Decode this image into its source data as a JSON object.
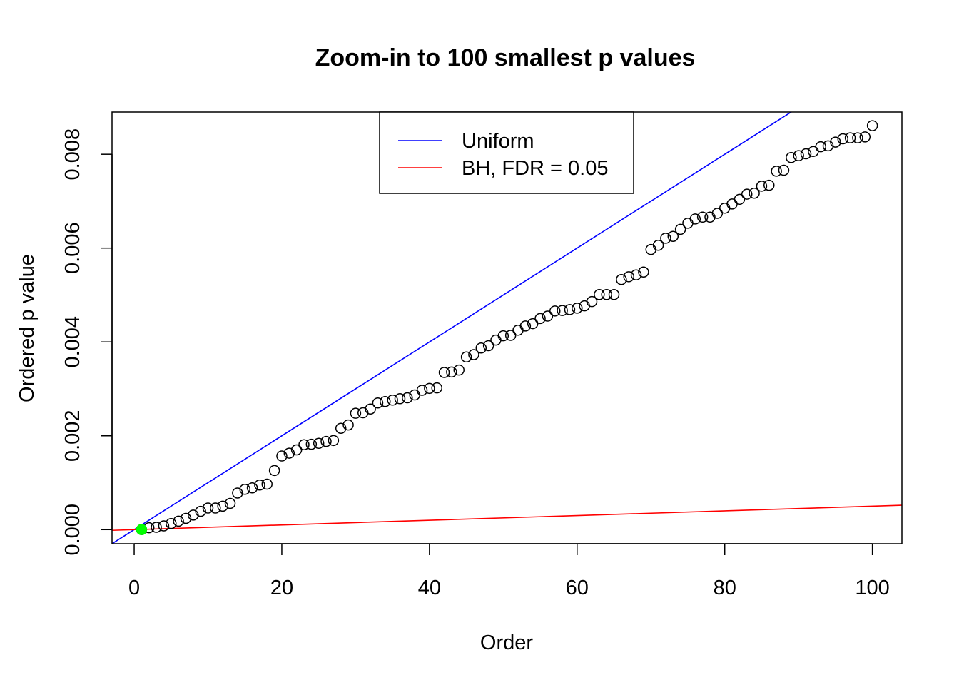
{
  "chart_data": {
    "type": "scatter",
    "title": "Zoom-in to 100 smallest p values",
    "xlabel": "Order",
    "ylabel": "Ordered p value",
    "xlim": [
      -3,
      104
    ],
    "ylim": [
      -0.0003,
      0.0089
    ],
    "xticks": [
      0,
      20,
      40,
      60,
      80,
      100
    ],
    "xtick_labels": [
      "0",
      "20",
      "40",
      "60",
      "80",
      "100"
    ],
    "yticks": [
      0,
      0.002,
      0.004,
      0.006,
      0.008
    ],
    "ytick_labels": [
      "0.000",
      "0.002",
      "0.004",
      "0.006",
      "0.008"
    ],
    "grid": false,
    "legend_position": "top-center",
    "legend": [
      {
        "label": "Uniform",
        "color": "#0000ff"
      },
      {
        "label": "BH, FDR = 0.05",
        "color": "#ff0000"
      }
    ],
    "lines": [
      {
        "name": "Uniform",
        "color": "#0000ff",
        "slope": 0.0001,
        "intercept": 0
      },
      {
        "name": "BH, FDR = 0.05",
        "color": "#ff0000",
        "slope": 5e-06,
        "intercept": 0
      }
    ],
    "highlight": {
      "x": 1,
      "y": 1.5e-06,
      "color": "#00ff00"
    },
    "series": [
      {
        "marker": "open-circle",
        "color": "#000000",
        "x": [
          1,
          2,
          3,
          4,
          5,
          6,
          7,
          8,
          9,
          10,
          11,
          12,
          13,
          14,
          15,
          16,
          17,
          18,
          19,
          20,
          21,
          22,
          23,
          24,
          25,
          26,
          27,
          28,
          29,
          30,
          31,
          32,
          33,
          34,
          35,
          36,
          37,
          38,
          39,
          40,
          41,
          42,
          43,
          44,
          45,
          46,
          47,
          48,
          49,
          50,
          51,
          52,
          53,
          54,
          55,
          56,
          57,
          58,
          59,
          60,
          61,
          62,
          63,
          64,
          65,
          66,
          67,
          68,
          69,
          70,
          71,
          72,
          73,
          74,
          75,
          76,
          77,
          78,
          79,
          80,
          81,
          82,
          83,
          84,
          85,
          86,
          87,
          88,
          89,
          90,
          91,
          92,
          93,
          94,
          95,
          96,
          97,
          98,
          99,
          100
        ],
        "y": [
          1.5e-06,
          4e-05,
          5e-05,
          8e-05,
          0.00013,
          0.00018,
          0.00024,
          0.00031,
          0.00039,
          0.00046,
          0.00046,
          0.0005,
          0.00056,
          0.00078,
          0.00086,
          0.00089,
          0.00095,
          0.00097,
          0.00126,
          0.00157,
          0.00163,
          0.0017,
          0.00181,
          0.00182,
          0.00184,
          0.00188,
          0.0019,
          0.00216,
          0.00223,
          0.00248,
          0.00249,
          0.00257,
          0.0027,
          0.00273,
          0.00276,
          0.00279,
          0.00281,
          0.00287,
          0.00297,
          0.00301,
          0.00302,
          0.00335,
          0.00336,
          0.0034,
          0.00368,
          0.00373,
          0.00387,
          0.00392,
          0.00404,
          0.00413,
          0.00414,
          0.00425,
          0.00434,
          0.00439,
          0.0045,
          0.00455,
          0.00466,
          0.00467,
          0.00469,
          0.00472,
          0.00477,
          0.00486,
          0.00501,
          0.00501,
          0.00501,
          0.00533,
          0.00539,
          0.00543,
          0.00549,
          0.00597,
          0.00606,
          0.00621,
          0.00625,
          0.0064,
          0.00653,
          0.00662,
          0.00666,
          0.00666,
          0.00674,
          0.00685,
          0.00694,
          0.00704,
          0.00715,
          0.00717,
          0.00732,
          0.00734,
          0.00764,
          0.00766,
          0.00793,
          0.00797,
          0.00801,
          0.00806,
          0.00816,
          0.00818,
          0.00826,
          0.00833,
          0.00835,
          0.00835,
          0.00837,
          0.00861
        ]
      }
    ]
  }
}
